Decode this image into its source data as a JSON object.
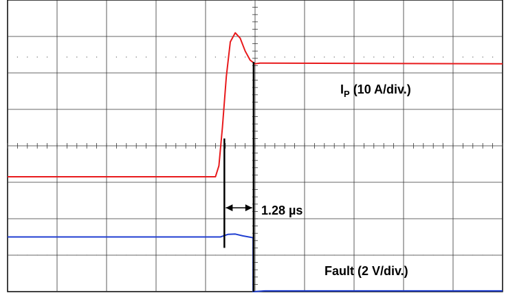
{
  "chart_data": {
    "type": "line",
    "title": "",
    "xlabel": "",
    "ylabel": "",
    "grid": true,
    "divisions": {
      "x": 10,
      "y": 8
    },
    "xlim": [
      0,
      10
    ],
    "ylim": [
      -4,
      4
    ],
    "x_units": "div",
    "y_units": "div",
    "series": [
      {
        "name": "IP (10 A/div.)",
        "label_main": "I",
        "label_sub": "P",
        "label_rest": " (10 A/div.)",
        "color": "#e8191b",
        "x": [
          0.0,
          4.2,
          4.27,
          4.34,
          4.42,
          4.5,
          4.6,
          4.7,
          4.8,
          4.9,
          5.0,
          5.1,
          10.0
        ],
        "y": [
          -0.85,
          -0.85,
          -0.55,
          0.5,
          1.9,
          2.85,
          3.1,
          2.95,
          2.6,
          2.35,
          2.25,
          2.27,
          2.25
        ]
      },
      {
        "name": "Fault (2 V/div.)",
        "color": "#1f3ed1",
        "x": [
          0.0,
          4.3,
          4.45,
          4.6,
          4.75,
          4.96,
          4.96,
          5.2,
          10.0
        ],
        "y": [
          -2.5,
          -2.5,
          -2.43,
          -2.42,
          -2.47,
          -2.52,
          -4.0,
          -3.98,
          -3.98
        ]
      }
    ],
    "annotations": [
      {
        "text": "1.28 µs",
        "type": "time-interval",
        "from_x": 4.38,
        "to_x": 4.97
      }
    ]
  }
}
